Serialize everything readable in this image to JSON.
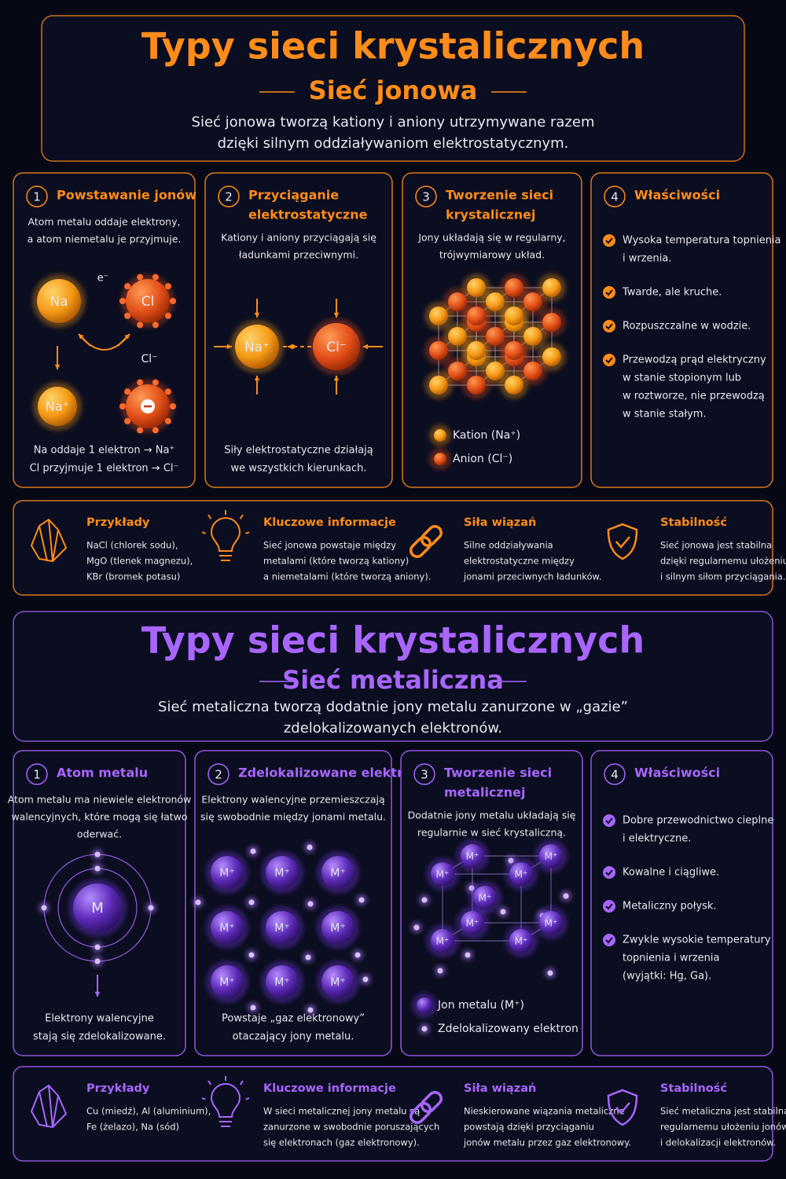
{
  "sections": [
    {
      "color": "#ff8c1a",
      "accent": "#ff5a14",
      "header": {
        "title": "Typy sieci krystalicznych",
        "subtitle": "Sieć jonowa",
        "description": [
          "Sieć jonowa tworzą kationy i aniony utrzymywane razem",
          "dzięki silnym oddziaływaniom elektrostatycznym."
        ]
      },
      "steps": [
        {
          "number": "1",
          "title": [
            "Powstawanie jonów"
          ],
          "text": [
            "Atom metalu oddaje elektrony,",
            "a atom niemetalu je przyjmuje."
          ],
          "labels": [
            "Na",
            "Cl",
            "e⁻",
            "Cl⁻",
            "Na⁺"
          ],
          "footer": [
            "Na oddaje 1 elektron → Na⁺",
            "Cl przyjmuje 1 elektron → Cl⁻"
          ]
        },
        {
          "number": "2",
          "title": [
            "Przyciąganie",
            "elektrostatyczne"
          ],
          "text": [
            "Kationy i aniony przyciągają się",
            "ładunkami przeciwnymi."
          ],
          "labels": [
            "Na⁺",
            "Cl⁻"
          ],
          "footer": [
            "Siły elektrostatyczne działają",
            "we wszystkich kierunkach."
          ]
        },
        {
          "number": "3",
          "title": [
            "Tworzenie sieci",
            "krystalicznej"
          ],
          "text": [
            "Jony układają się w regularny,",
            "trójwymiarowy układ."
          ],
          "legend": [
            "Kation (Na⁺)",
            "Anion (Cl⁻)"
          ]
        },
        {
          "number": "4",
          "title": [
            "Właściwości"
          ],
          "items": [
            [
              "Wysoka temperatura topnienia",
              "i wrzenia."
            ],
            [
              "Twarde, ale kruche."
            ],
            [
              "Rozpuszczalne w wodzie."
            ],
            [
              "Przewodzą prąd elektryczny",
              "w stanie stopionym lub",
              "w roztworze, nie przewodzą",
              "w stanie stałym."
            ]
          ]
        }
      ],
      "info": [
        {
          "title": "Przykłady",
          "text": [
            "NaCl (chlorek sodu),",
            "MgO (tlenek magnezu),",
            "KBr (bromek potasu)"
          ]
        },
        {
          "title": "Kluczowe informacje",
          "text": [
            "Sieć jonowa powstaje między",
            "metalami (które tworzą kationy)",
            "a niemetalami (które tworzą aniony)."
          ]
        },
        {
          "title": "Siła wiązań",
          "text": [
            "Silne oddziaływania",
            "elektrostatyczne między",
            "jonami przeciwnych ładunków."
          ]
        },
        {
          "title": "Stabilność",
          "text": [
            "Sieć jonowa jest stabilna",
            "dzięki regularnemu ułożeniu jonów",
            "i silnym siłom przyciągania."
          ]
        }
      ]
    },
    {
      "color": "#a866ff",
      "accent": "#6a2fc9",
      "header": {
        "title": "Typy sieci krystalicznych",
        "subtitle": "Sieć metaliczna",
        "description": [
          "Sieć metaliczna tworzą dodatnie jony metalu zanurzone w „gazie”",
          "zdelokalizowanych elektronów."
        ]
      },
      "steps": [
        {
          "number": "1",
          "title": [
            "Atom metalu"
          ],
          "text": [
            "Atom metalu ma niewiele elektronów",
            "walencyjnych, które mogą się łatwo",
            "oderwać."
          ],
          "labels": [
            "M"
          ],
          "footer": [
            "Elektrony walencyjne",
            "stają się zdelokalizowane."
          ]
        },
        {
          "number": "2",
          "title": [
            "Zdelokalizowane elektrony"
          ],
          "text": [
            "Elektrony walencyjne przemieszczają",
            "się swobodnie między jonami metalu."
          ],
          "labels": [
            "M⁺"
          ],
          "footer": [
            "Powstaje „gaz elektronowy”",
            "otaczający jony metalu."
          ]
        },
        {
          "number": "3",
          "title": [
            "Tworzenie sieci",
            "metalicznej"
          ],
          "text": [
            "Dodatnie jony metalu układają się",
            "regularnie w sieć krystaliczną."
          ],
          "labels": [
            "M⁺"
          ],
          "legend": [
            "Jon metalu (M⁺)",
            "Zdelokalizowany elektron"
          ]
        },
        {
          "number": "4",
          "title": [
            "Właściwości"
          ],
          "items": [
            [
              "Dobre przewodnictwo cieplne",
              "i elektryczne."
            ],
            [
              "Kowalne i ciągliwe."
            ],
            [
              "Metaliczny połysk."
            ],
            [
              "Zwykle wysokie temperatury",
              "topnienia i wrzenia",
              "(wyjątki: Hg, Ga)."
            ]
          ]
        }
      ],
      "info": [
        {
          "title": "Przykłady",
          "text": [
            "Cu (miedź), Al (aluminium),",
            "Fe (żelazo), Na (sód)"
          ]
        },
        {
          "title": "Kluczowe informacje",
          "text": [
            "W sieci metalicznej jony metalu są",
            "zanurzone w swobodnie poruszających",
            "się elektronach (gaz elektronowy)."
          ]
        },
        {
          "title": "Siła wiązań",
          "text": [
            "Nieskierowane wiązania metaliczne",
            "powstają dzięki przyciąganiu",
            "jonów metalu przez gaz elektronowy."
          ]
        },
        {
          "title": "Stabilność",
          "text": [
            "Sieć metaliczna jest stabilna dzięki",
            "regularnemu ułożeniu jonów",
            "i delokalizacji elektronów."
          ]
        }
      ]
    }
  ]
}
